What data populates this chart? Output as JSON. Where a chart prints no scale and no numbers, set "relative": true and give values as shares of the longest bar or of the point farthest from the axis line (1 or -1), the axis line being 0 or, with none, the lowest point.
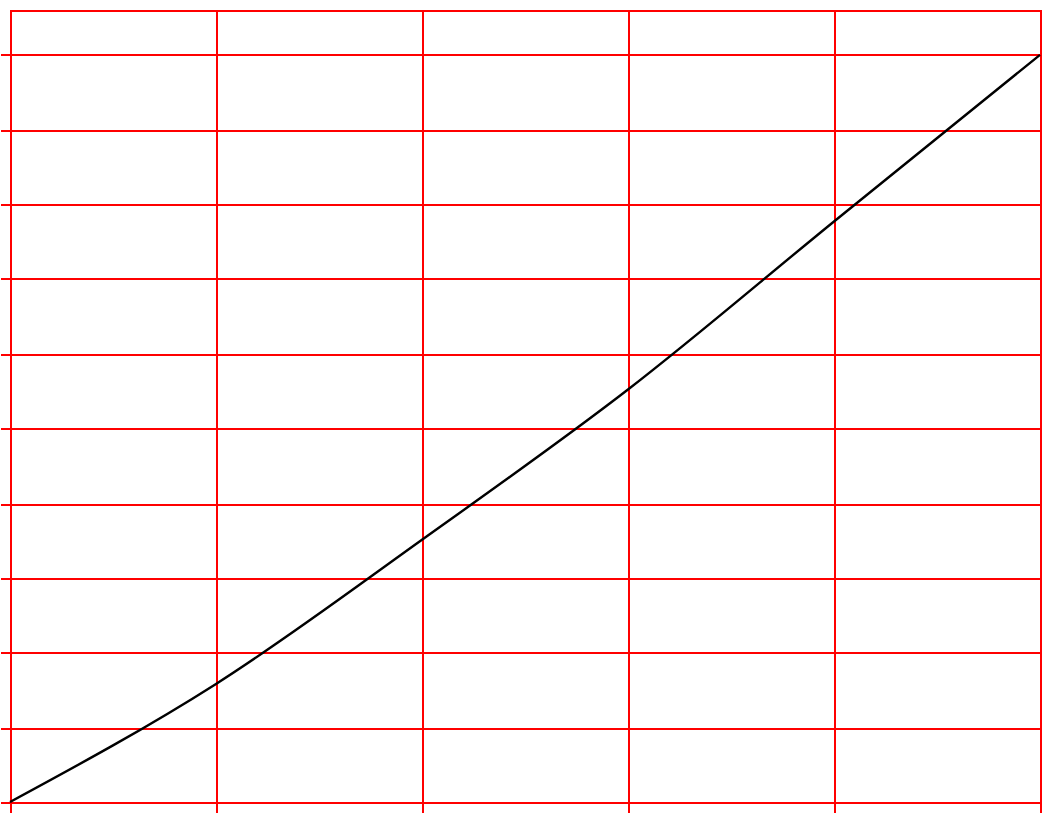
{
  "chart_data": {
    "type": "line",
    "relative": true,
    "grid": true,
    "categories": [
      null,
      null,
      null,
      null,
      null,
      null
    ],
    "series": [
      {
        "color": "#000000",
        "values": [
          0,
          0.158,
          0.351,
          0.552,
          0.777,
          1
        ]
      }
    ]
  }
}
